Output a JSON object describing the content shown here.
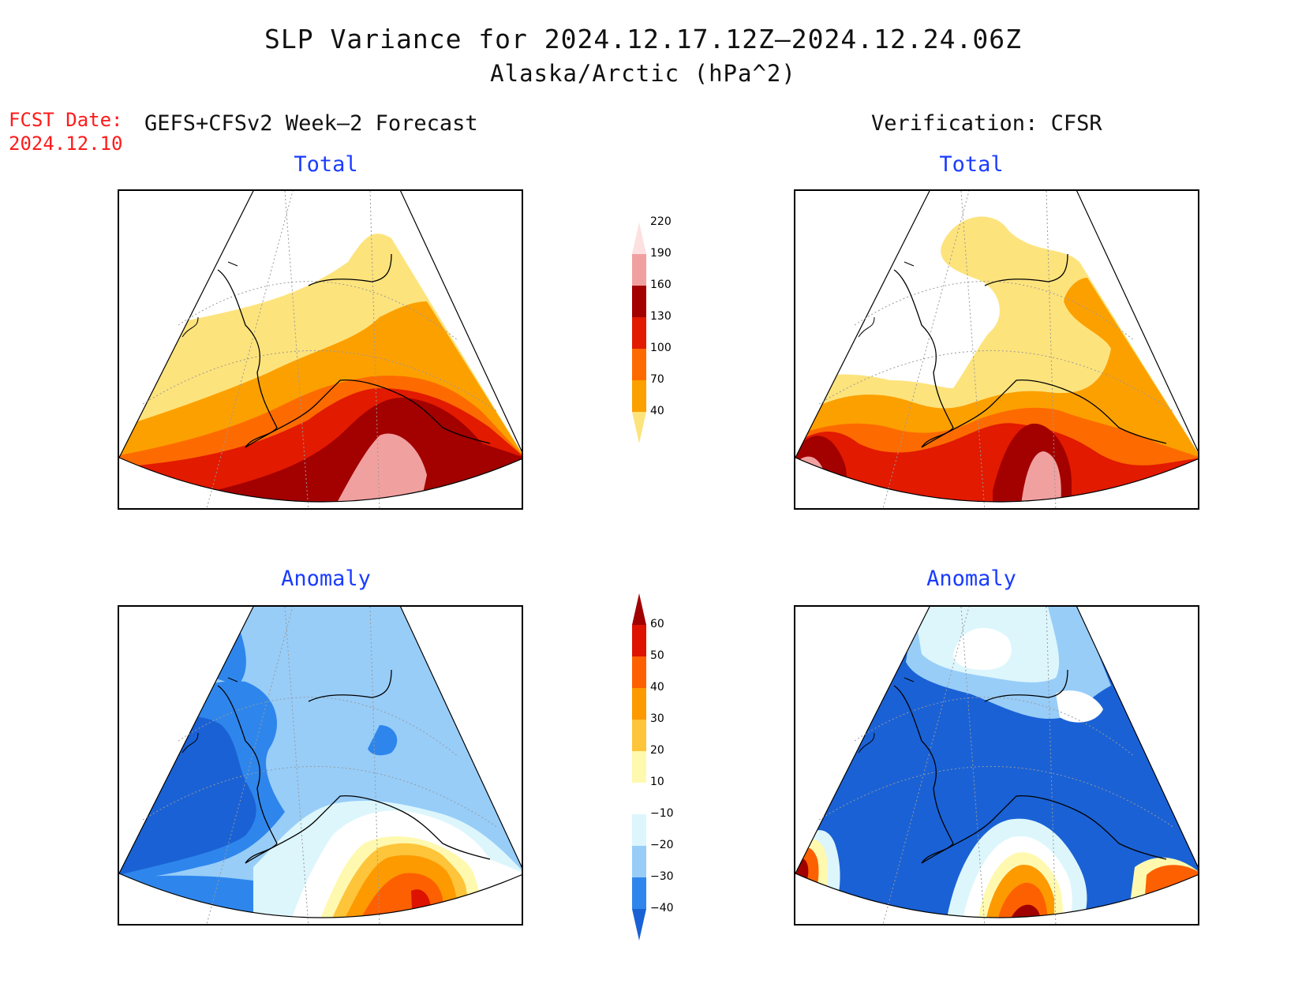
{
  "title": {
    "line1": "SLP Variance for 2024.12.17.12Z–2024.12.24.06Z",
    "line2": "Alaska/Arctic (hPa^2)"
  },
  "forecast_date": {
    "label": "FCST Date:",
    "value": "2024.12.10"
  },
  "left_header": "GEFS+CFSv2 Week–2 Forecast",
  "right_header": "Verification: CFSR",
  "panels": [
    {
      "id": "forecast-total",
      "title": "Total"
    },
    {
      "id": "verification-total",
      "title": "Total"
    },
    {
      "id": "forecast-anomaly",
      "title": "Anomaly"
    },
    {
      "id": "verification-anomaly",
      "title": "Anomaly"
    }
  ],
  "colorbars": {
    "total": {
      "ticks": [
        "40",
        "70",
        "100",
        "130",
        "160",
        "190",
        "220"
      ],
      "colors": [
        "#fde37c",
        "#fca000",
        "#fd6b00",
        "#e21a00",
        "#a30000",
        "#f1a0a0",
        "#fde0e0"
      ]
    },
    "anomaly": {
      "ticks": [
        "−40",
        "−30",
        "−20",
        "−10",
        "10",
        "20",
        "30",
        "40",
        "50",
        "60"
      ],
      "colors": [
        "#1a61d5",
        "#2e86ec",
        "#98cdf8",
        "#dcf6fc",
        "#ffffff",
        "#fff9b0",
        "#fec43a",
        "#fd9a00",
        "#fd6000",
        "#de1200",
        "#a00000"
      ]
    }
  }
}
